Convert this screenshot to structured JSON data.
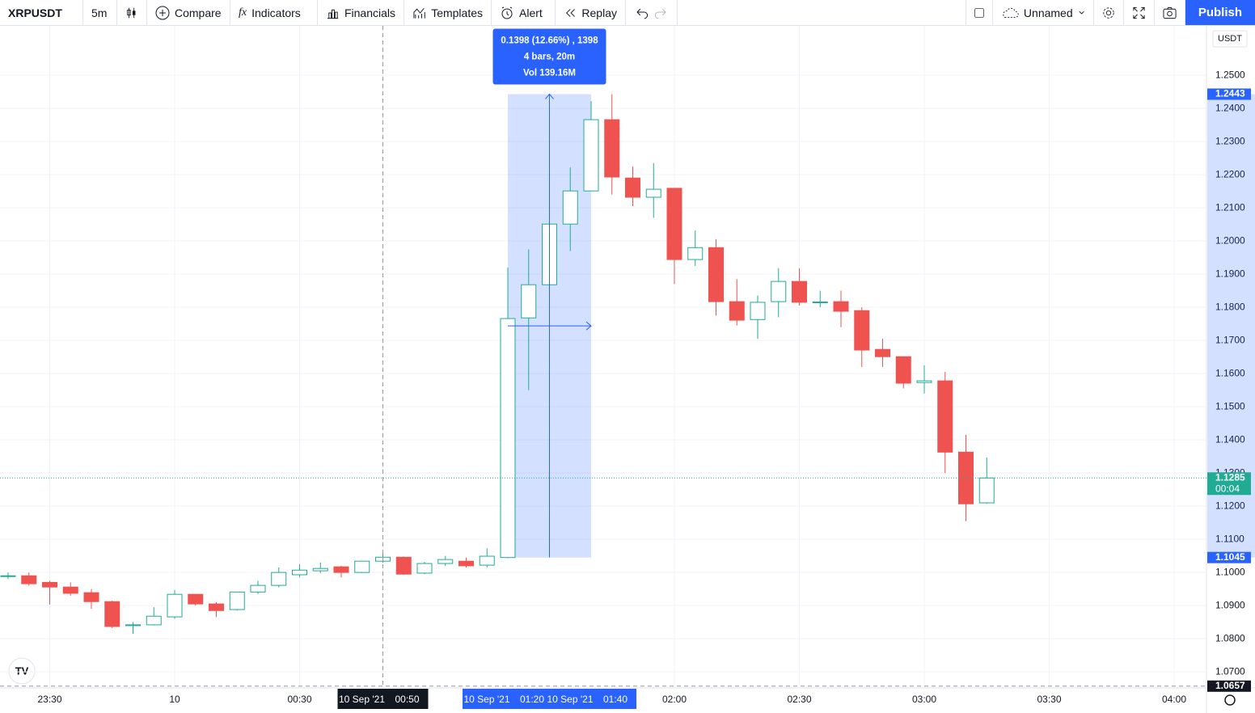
{
  "toolbar": {
    "symbol": "XRPUSDT",
    "interval": "5m",
    "buttons": [
      "Compare",
      "Indicators",
      "Financials",
      "Templates",
      "Alert",
      "Replay"
    ],
    "layout_name": "Unnamed",
    "publish": "Publish"
  },
  "chart_data": {
    "type": "candlestick",
    "currency": "USDT",
    "categories": [
      null,
      null,
      "23:30",
      null,
      null,
      null,
      null,
      null,
      "10",
      null,
      null,
      null,
      null,
      null,
      "00:30",
      null,
      null,
      null,
      null,
      null,
      null,
      null,
      null,
      null,
      null,
      null,
      null,
      null,
      null,
      null,
      null,
      null,
      "02:00",
      null,
      null,
      null,
      null,
      null,
      "02:30",
      null,
      null,
      null,
      null,
      null,
      "03:00",
      null,
      null,
      null,
      null,
      null,
      "03:30",
      null,
      null,
      null,
      null,
      null,
      "04:00"
    ],
    "open": [
      1.099,
      1.099,
      1.097,
      1.0956,
      1.0939,
      1.0912,
      1.084,
      1.0842,
      1.0866,
      1.0934,
      1.0905,
      1.0888,
      1.0941,
      1.0961,
      1.0993,
      1.1005,
      1.1017,
      1.1,
      1.1034,
      1.1046,
      1.0998,
      1.1027,
      1.1034,
      1.1022,
      1.1045,
      1.1768,
      1.1868,
      1.2051,
      1.2151,
      1.2366,
      1.219,
      1.2132,
      1.2159,
      1.1944,
      1.198,
      1.1817,
      1.1763,
      1.1817,
      1.1878,
      1.1815,
      1.1817,
      1.179,
      1.1673,
      1.1651,
      1.1573,
      1.1578,
      1.1363,
      1.121,
      null,
      null,
      null,
      null,
      null,
      null,
      null,
      null,
      null
    ],
    "high": [
      1.1,
      1.1,
      1.0975,
      1.097,
      1.095,
      1.0915,
      1.085,
      1.0895,
      1.0947,
      1.0935,
      1.091,
      1.0942,
      1.0975,
      1.1015,
      1.1025,
      1.103,
      1.102,
      1.1035,
      1.106,
      1.1048,
      1.1032,
      1.105,
      1.1045,
      1.1073,
      1.192,
      1.1975,
      1.2052,
      1.2222,
      1.2422,
      1.2443,
      1.2225,
      1.2235,
      1.216,
      1.2032,
      1.2005,
      1.1885,
      1.1835,
      1.1918,
      1.1918,
      1.185,
      1.185,
      1.18,
      1.1705,
      1.1652,
      1.1625,
      1.1605,
      1.1415,
      1.1347,
      null,
      null,
      null,
      null,
      null,
      null,
      null,
      null,
      null
    ],
    "low": [
      1.098,
      1.096,
      1.0903,
      1.093,
      1.089,
      1.0832,
      1.0815,
      1.084,
      1.086,
      1.09,
      1.0865,
      1.0885,
      1.0935,
      1.0955,
      1.0985,
      1.0998,
      1.0985,
      1.0998,
      1.103,
      1.0993,
      1.0995,
      1.102,
      1.1015,
      1.1015,
      1.1043,
      1.155,
      1.185,
      1.197,
      1.215,
      1.214,
      1.2105,
      1.207,
      1.187,
      1.1925,
      1.1775,
      1.1745,
      1.1705,
      1.177,
      1.1805,
      1.18,
      1.174,
      1.162,
      1.162,
      1.1555,
      1.154,
      1.13,
      1.1155,
      1.1207,
      null,
      null,
      null,
      null,
      null,
      null,
      null,
      null,
      null
    ],
    "close": [
      1.099,
      1.0966,
      1.0956,
      1.0937,
      1.0912,
      1.0837,
      1.0842,
      1.0868,
      1.0934,
      1.0905,
      1.0885,
      1.0941,
      1.0961,
      1.1,
      1.1007,
      1.1012,
      1.1,
      1.1034,
      1.1046,
      1.0995,
      1.1027,
      1.1039,
      1.102,
      1.1049,
      1.1766,
      1.1868,
      1.2051,
      1.2151,
      1.2366,
      1.2193,
      1.2132,
      1.2156,
      1.1944,
      1.198,
      1.1817,
      1.1761,
      1.1815,
      1.1878,
      1.1815,
      1.1816,
      1.1788,
      1.1671,
      1.1651,
      1.1571,
      1.1578,
      1.1363,
      1.1207,
      1.1285,
      null,
      null,
      null,
      null,
      null,
      null,
      null,
      null,
      null
    ],
    "up_color": "#22ab94",
    "down_color": "#ef5350",
    "ylim": [
      1.0654,
      1.2649
    ],
    "yticks": [
      {
        "value": 1.07,
        "label": "1.0700"
      },
      {
        "value": 1.08,
        "label": "1.0800"
      },
      {
        "value": 1.09,
        "label": "1.0900"
      },
      {
        "value": 1.1,
        "label": "1.1000"
      },
      {
        "value": 1.11,
        "label": "1.1100"
      },
      {
        "value": 1.12,
        "label": "1.1200"
      },
      {
        "value": 1.13,
        "label": "1.1300"
      },
      {
        "value": 1.14,
        "label": "1.1400"
      },
      {
        "value": 1.15,
        "label": "1.1500"
      },
      {
        "value": 1.16,
        "label": "1.1600"
      },
      {
        "value": 1.17,
        "label": "1.1700"
      },
      {
        "value": 1.18,
        "label": "1.1800"
      },
      {
        "value": 1.19,
        "label": "1.1900"
      },
      {
        "value": 1.2,
        "label": "1.2000"
      },
      {
        "value": 1.21,
        "label": "1.2100"
      },
      {
        "value": 1.22,
        "label": "1.2200"
      },
      {
        "value": 1.23,
        "label": "1.2300"
      },
      {
        "value": 1.24,
        "label": "1.2400"
      },
      {
        "value": 1.25,
        "label": "1.2500"
      }
    ],
    "grid": true,
    "last_price": {
      "value": 1.1285,
      "countdown": "00:04"
    },
    "crosshair": {
      "date": "10 Sep '21",
      "time": "00:50",
      "price": 1.0657
    },
    "measure": {
      "high": 1.2443,
      "low": 1.1045,
      "lines": [
        "0.1398 (12.66%) , 1398",
        "4 bars, 20m",
        "Vol 139.16M"
      ],
      "start": {
        "date": "10 Sep '21",
        "time": "01:20"
      },
      "end": {
        "date": "10 Sep '21",
        "time": "01:40"
      }
    }
  }
}
